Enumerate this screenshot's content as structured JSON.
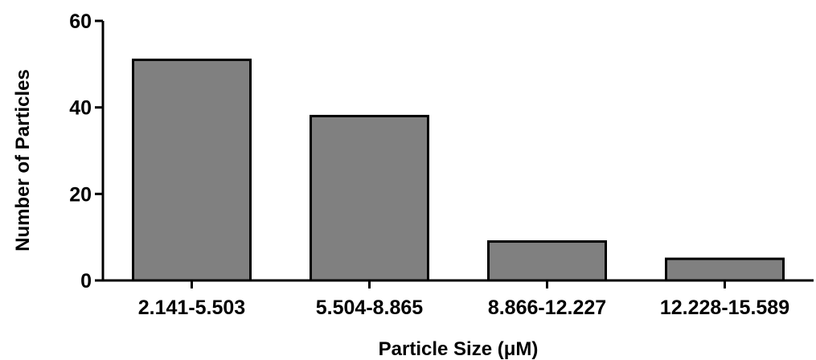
{
  "chart_data": {
    "type": "bar",
    "categories": [
      "2.141-5.503",
      "5.504-8.865",
      "8.866-12.227",
      "12.228-15.589"
    ],
    "values": [
      51,
      38,
      9,
      5
    ],
    "title": "",
    "xlabel": "Particle Size (μM)",
    "ylabel": "Number of Particles",
    "ylim": [
      0,
      60
    ],
    "yticks": [
      0,
      20,
      40,
      60
    ],
    "grid": false,
    "legend": "none",
    "colors": {
      "bar_fill": "#808080",
      "bar_stroke": "#000000",
      "axis": "#000000"
    }
  }
}
